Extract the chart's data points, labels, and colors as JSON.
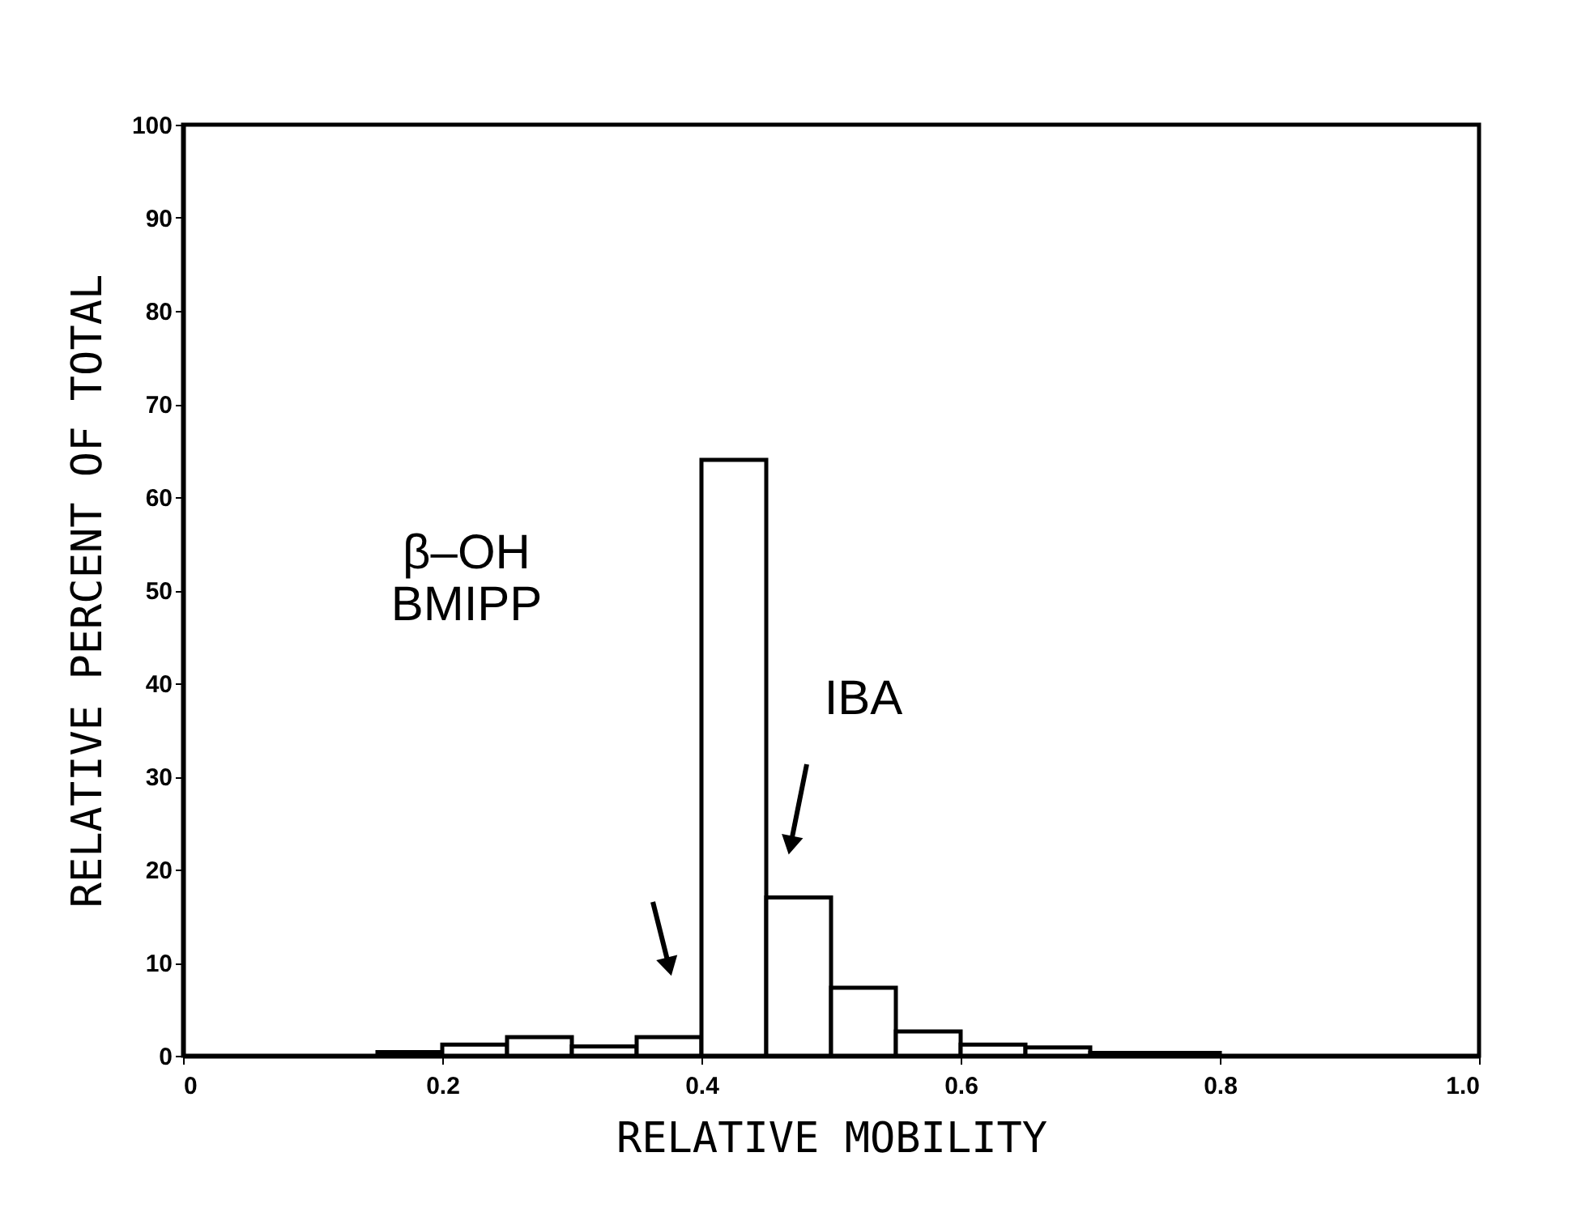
{
  "chart_data": {
    "type": "histogram",
    "xlabel": "RELATIVE MOBILITY",
    "ylabel": "RELATIVE PERCENT OF TOTAL",
    "bins": [
      0.15,
      0.2,
      0.25,
      0.3,
      0.35,
      0.4,
      0.45,
      0.5,
      0.55,
      0.6,
      0.65,
      0.7,
      0.75,
      0.8
    ],
    "values": [
      0.4,
      1.2,
      2.0,
      1.0,
      2.0,
      64,
      17,
      7.3,
      2.6,
      1.2,
      0.9,
      0.3,
      0.3
    ],
    "color": "#ffffff",
    "xlim": [
      0,
      1.0
    ],
    "xticks": [
      {
        "value": 0,
        "label": "0"
      },
      0.2,
      0.4,
      0.6,
      0.8,
      {
        "value": 1.0,
        "label": "1.0"
      }
    ],
    "ylim": [
      0,
      100
    ],
    "yticks": [
      0,
      10,
      20,
      30,
      40,
      50,
      60,
      70,
      80,
      90,
      100
    ],
    "grid": false,
    "annotations": [
      "β–OH BMIPP",
      "IBA"
    ]
  }
}
